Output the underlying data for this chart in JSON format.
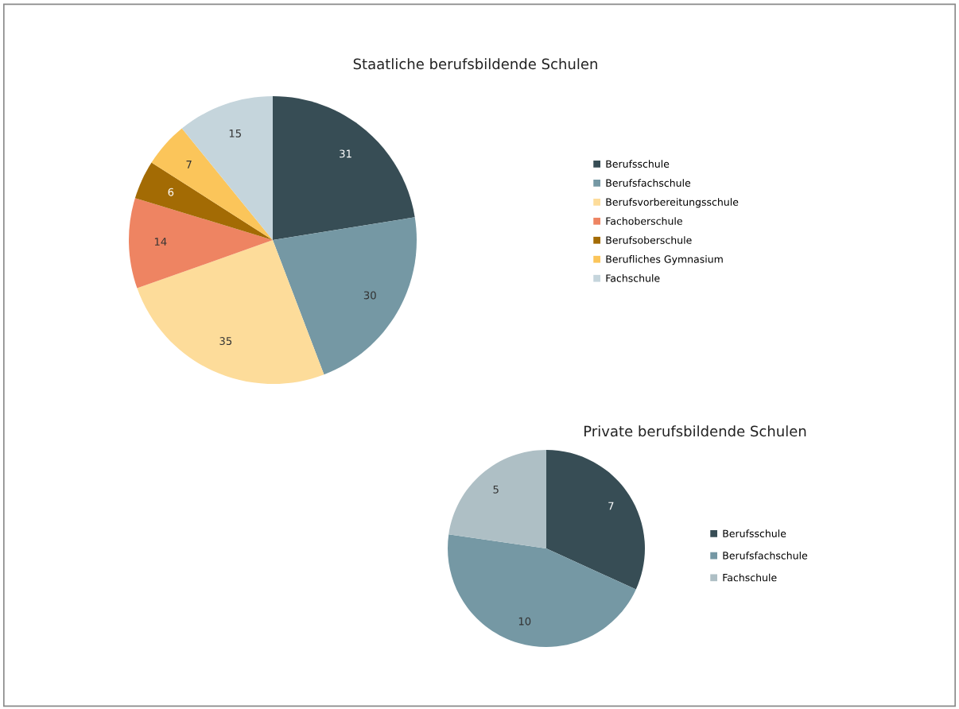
{
  "chart_data": [
    {
      "type": "pie",
      "title": "Staatliche berufsbildende Schulen",
      "categories": [
        "Berufsschule",
        "Berufsfachschule",
        "Berufsvorbereitungsschule",
        "Fachoberschule",
        "Berufsoberschule",
        "Berufliches Gymnasium",
        "Fachschule"
      ],
      "values": [
        31,
        30,
        35,
        14,
        6,
        7,
        15
      ],
      "colors": [
        "#374d55",
        "#7598a4",
        "#fddc9a",
        "#ee8462",
        "#a36b04",
        "#fbc55a",
        "#c5d5dc"
      ],
      "data_labels": true,
      "legend": "right"
    },
    {
      "type": "pie",
      "title": "Private berufsbildende Schulen",
      "categories": [
        "Berufsschule",
        "Berufsfachschule",
        "Fachschule"
      ],
      "values": [
        7,
        10,
        5
      ],
      "colors": [
        "#374d55",
        "#7598a4",
        "#aebfc5"
      ],
      "data_labels": true,
      "legend": "right"
    }
  ]
}
